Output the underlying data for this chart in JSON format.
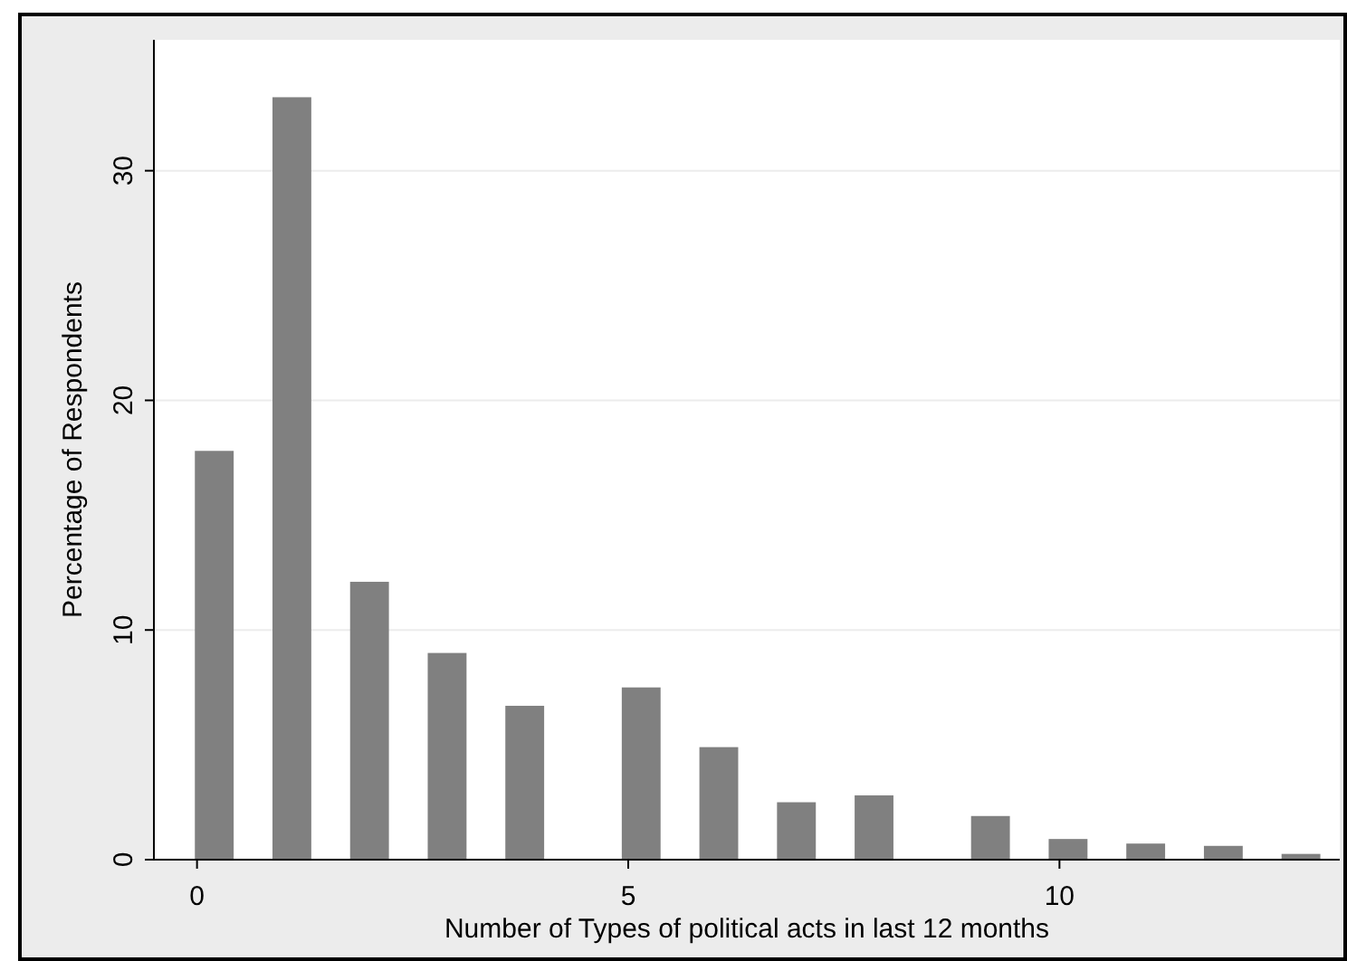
{
  "chart_data": {
    "type": "bar",
    "xlabel": "Number of Types of political acts in last 12 months",
    "ylabel": "Percentage of Respondents",
    "x": [
      0.2,
      1.1,
      2.0,
      2.9,
      3.8,
      5.15,
      6.05,
      6.95,
      7.85,
      9.2,
      10.1,
      11.0,
      11.9,
      12.8
    ],
    "values": [
      17.8,
      33.2,
      12.1,
      9.0,
      6.7,
      7.5,
      4.9,
      2.5,
      2.8,
      1.9,
      0.9,
      0.7,
      0.6,
      0.25
    ],
    "color": "#808080",
    "xlim": [
      -0.5,
      13.25
    ],
    "xticks": [
      0,
      5,
      10
    ],
    "ylim": [
      0,
      35.7
    ],
    "yticks": [
      0,
      10,
      20,
      30
    ],
    "grid": "y"
  }
}
